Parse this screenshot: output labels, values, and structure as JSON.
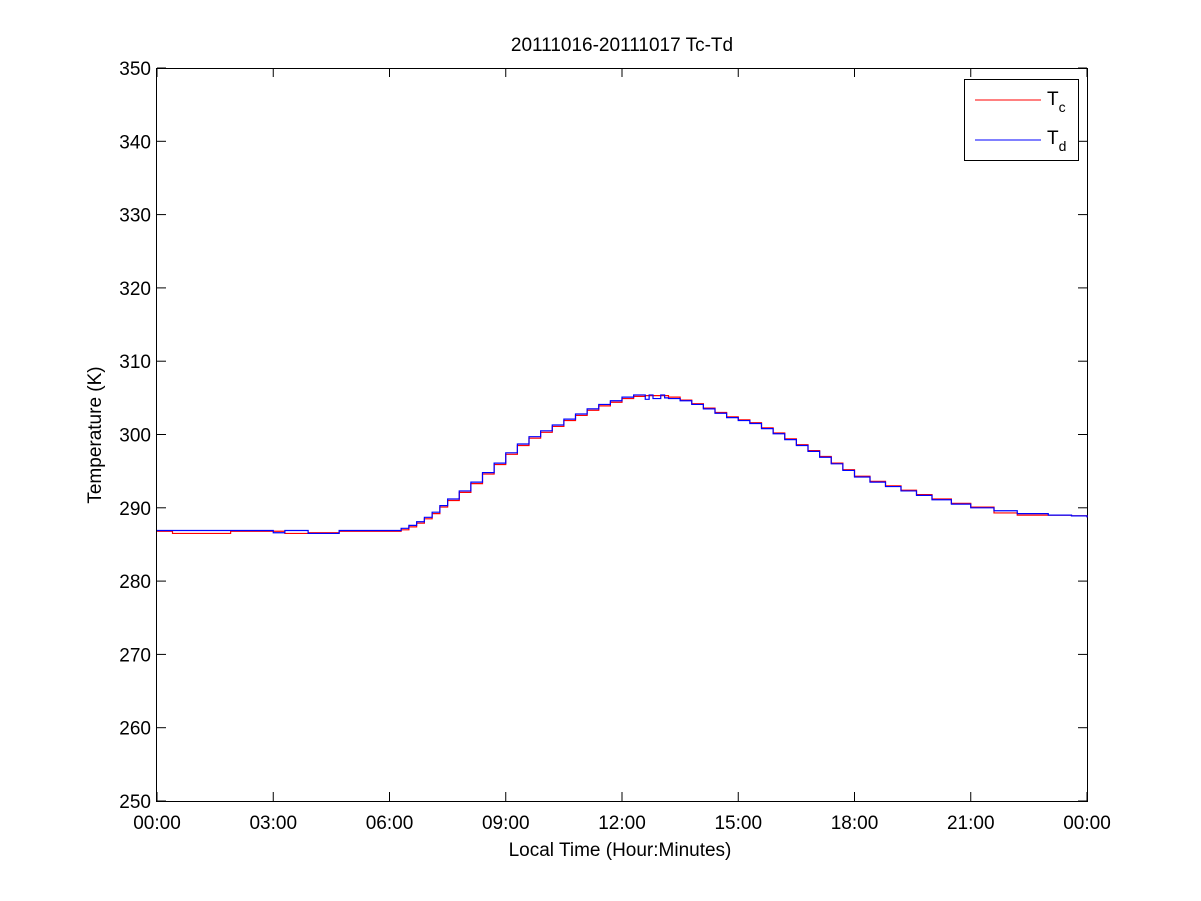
{
  "chart_data": {
    "type": "line",
    "title": "20111016-20111017 Tc-Td",
    "xlabel": "Local Time (Hour:Minutes)",
    "ylabel": "Temperature (K)",
    "xlim": [
      0,
      24
    ],
    "ylim": [
      250,
      350
    ],
    "x_ticks": [
      0,
      3,
      6,
      9,
      12,
      15,
      18,
      21,
      24
    ],
    "x_tick_labels": [
      "00:00",
      "03:00",
      "06:00",
      "09:00",
      "12:00",
      "15:00",
      "18:00",
      "21:00",
      "00:00"
    ],
    "y_ticks": [
      250,
      260,
      270,
      280,
      290,
      300,
      310,
      320,
      330,
      340,
      350
    ],
    "y_tick_labels": [
      "250",
      "260",
      "270",
      "280",
      "290",
      "300",
      "310",
      "320",
      "330",
      "340",
      "350"
    ],
    "grid": false,
    "legend": {
      "position": "top-right",
      "entries": [
        {
          "base": "T",
          "sub": "c"
        },
        {
          "base": "T",
          "sub": "d"
        }
      ]
    },
    "series": [
      {
        "name": "Tc",
        "color": "#ff0000",
        "x": [
          0.0,
          0.4,
          0.4,
          1.9,
          1.9,
          3.3,
          3.3,
          3.9,
          3.9,
          4.7,
          4.7,
          6.0,
          6.3,
          6.5,
          6.7,
          6.9,
          7.1,
          7.3,
          7.5,
          7.8,
          8.1,
          8.4,
          8.7,
          9.0,
          9.3,
          9.6,
          9.9,
          10.2,
          10.5,
          10.8,
          11.1,
          11.4,
          11.7,
          12.0,
          12.3,
          12.6,
          12.9,
          13.2,
          13.5,
          13.8,
          14.1,
          14.4,
          14.7,
          15.0,
          15.3,
          15.6,
          15.9,
          16.2,
          16.5,
          16.8,
          17.1,
          17.4,
          17.7,
          18.0,
          18.4,
          18.8,
          19.2,
          19.6,
          20.0,
          20.5,
          21.0,
          21.6,
          21.6,
          22.2,
          22.2,
          23.0,
          23.6,
          24.0
        ],
        "y": [
          286.8,
          286.8,
          286.5,
          286.5,
          286.8,
          286.8,
          286.5,
          286.5,
          286.6,
          286.6,
          286.8,
          286.8,
          287.0,
          287.4,
          287.9,
          288.5,
          289.2,
          290.1,
          291.0,
          292.1,
          293.3,
          294.6,
          295.9,
          297.3,
          298.5,
          299.5,
          300.3,
          301.1,
          301.9,
          302.6,
          303.3,
          303.9,
          304.4,
          304.9,
          305.2,
          305.3,
          305.3,
          305.1,
          304.7,
          304.2,
          303.6,
          303.0,
          302.4,
          302.0,
          301.6,
          300.9,
          300.2,
          299.4,
          298.6,
          297.8,
          297.0,
          296.1,
          295.2,
          294.3,
          293.6,
          293.0,
          292.4,
          291.8,
          291.2,
          290.6,
          290.1,
          289.7,
          289.3,
          289.3,
          289.0,
          289.0,
          288.9,
          288.7
        ]
      },
      {
        "name": "Td",
        "color": "#0000ff",
        "x": [
          0.0,
          3.0,
          3.0,
          3.3,
          3.3,
          3.9,
          3.9,
          4.1,
          4.1,
          4.7,
          4.7,
          6.0,
          6.3,
          6.5,
          6.7,
          6.9,
          7.1,
          7.3,
          7.5,
          7.8,
          8.1,
          8.4,
          8.7,
          9.0,
          9.3,
          9.6,
          9.9,
          10.2,
          10.5,
          10.8,
          11.1,
          11.4,
          11.7,
          12.0,
          12.3,
          12.6,
          12.7,
          12.8,
          13.0,
          13.1,
          13.2,
          13.5,
          13.8,
          14.1,
          14.4,
          14.7,
          15.0,
          15.3,
          15.6,
          15.9,
          16.2,
          16.5,
          16.8,
          17.1,
          17.4,
          17.7,
          18.0,
          18.4,
          18.8,
          19.2,
          19.6,
          20.0,
          20.5,
          21.0,
          21.6,
          22.2,
          23.0,
          23.6,
          24.0
        ],
        "y": [
          286.9,
          286.9,
          286.6,
          286.6,
          286.9,
          286.9,
          286.5,
          286.5,
          286.5,
          286.5,
          286.9,
          286.9,
          287.2,
          287.6,
          288.1,
          288.7,
          289.4,
          290.3,
          291.2,
          292.3,
          293.5,
          294.8,
          296.1,
          297.5,
          298.7,
          299.7,
          300.5,
          301.3,
          302.1,
          302.8,
          303.5,
          304.1,
          304.6,
          305.1,
          305.4,
          304.8,
          305.4,
          304.9,
          305.4,
          305.0,
          304.9,
          304.6,
          304.1,
          303.5,
          302.9,
          302.3,
          301.9,
          301.5,
          300.8,
          300.1,
          299.3,
          298.5,
          297.7,
          296.9,
          296.0,
          295.1,
          294.2,
          293.5,
          292.9,
          292.3,
          291.7,
          291.1,
          290.5,
          290.0,
          289.6,
          289.2,
          289.0,
          288.9,
          288.7
        ]
      }
    ]
  }
}
